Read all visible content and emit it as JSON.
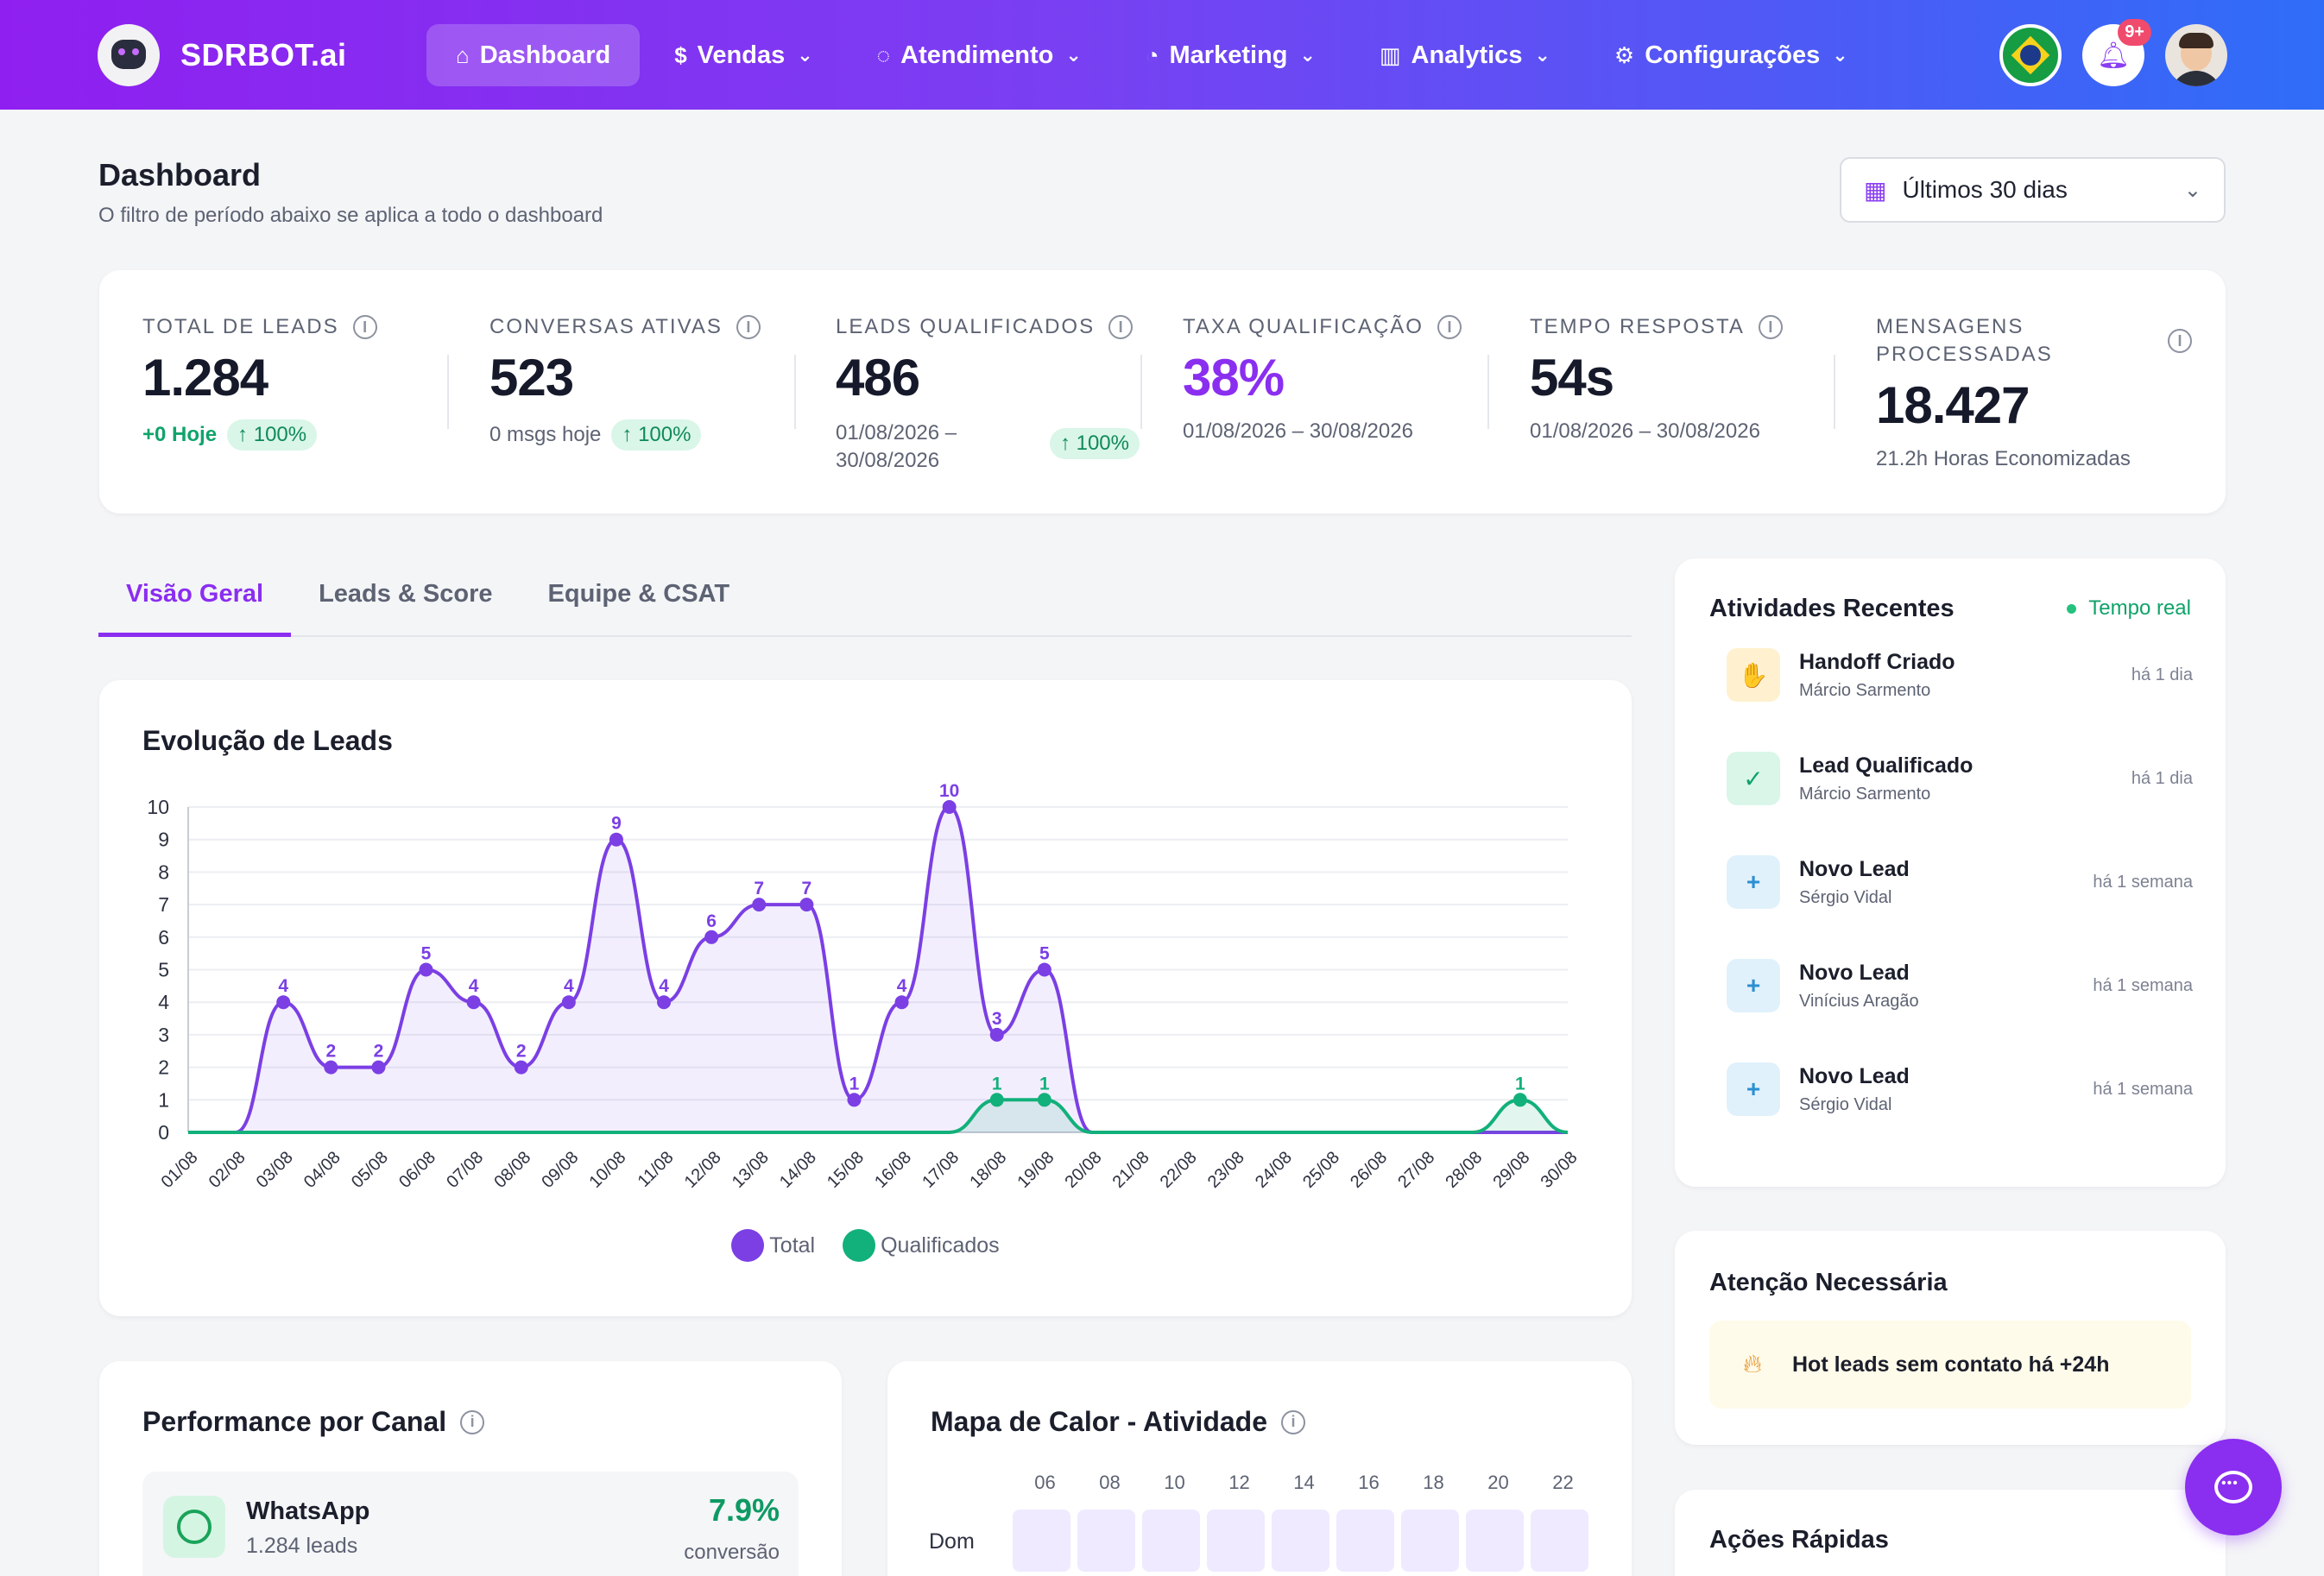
{
  "brand": {
    "name": "SDRBOT.ai"
  },
  "nav": {
    "items": [
      {
        "label": "Dashboard",
        "icon": "home-icon",
        "active": true,
        "dropdown": false
      },
      {
        "label": "Vendas",
        "icon": "dollar-icon",
        "active": false,
        "dropdown": true
      },
      {
        "label": "Atendimento",
        "icon": "chat-icon",
        "active": false,
        "dropdown": true
      },
      {
        "label": "Marketing",
        "icon": "pie-chart-icon",
        "active": false,
        "dropdown": true
      },
      {
        "label": "Analytics",
        "icon": "bar-chart-icon",
        "active": false,
        "dropdown": true
      },
      {
        "label": "Configurações",
        "icon": "gear-icon",
        "active": false,
        "dropdown": true
      }
    ],
    "notifications_badge": "9+"
  },
  "header": {
    "title": "Dashboard",
    "subtitle": "O filtro de período abaixo se aplica a todo o dashboard",
    "period": "Últimos 30 dias"
  },
  "kpis": [
    {
      "label": "TOTAL DE LEADS",
      "value": "1.284",
      "foot_primary": "+0 Hoje",
      "pill": "100%"
    },
    {
      "label": "CONVERSAS ATIVAS",
      "value": "523",
      "foot_primary": "0 msgs hoje",
      "pill": "100%"
    },
    {
      "label": "LEADS QUALIFICADOS",
      "value": "486",
      "foot_line1": "01/08/2026 –",
      "foot_line2": "30/08/2026",
      "pill": "100%"
    },
    {
      "label": "TAXA QUALIFICAÇÃO",
      "value": "38%",
      "foot_primary": "01/08/2026 – 30/08/2026"
    },
    {
      "label": "TEMPO RESPOSTA",
      "value": "54s",
      "foot_primary": "01/08/2026 – 30/08/2026"
    },
    {
      "label_line1": "MENSAGENS",
      "label_line2": "PROCESSADAS",
      "value": "18.427",
      "foot_primary": "21.2h Horas Economizadas"
    }
  ],
  "tabs": [
    {
      "label": "Visão Geral",
      "active": true
    },
    {
      "label": "Leads & Score",
      "active": false
    },
    {
      "label": "Equipe & CSAT",
      "active": false
    }
  ],
  "chart_title": "Evolução de Leads",
  "chart_data": {
    "type": "area",
    "categories": [
      "01/08",
      "02/08",
      "03/08",
      "04/08",
      "05/08",
      "06/08",
      "07/08",
      "08/08",
      "09/08",
      "10/08",
      "11/08",
      "12/08",
      "13/08",
      "14/08",
      "15/08",
      "16/08",
      "17/08",
      "18/08",
      "19/08",
      "20/08",
      "21/08",
      "22/08",
      "23/08",
      "24/08",
      "25/08",
      "26/08",
      "27/08",
      "28/08",
      "29/08",
      "30/08"
    ],
    "ylim": [
      0,
      10
    ],
    "yticks": [
      0,
      1,
      2,
      3,
      4,
      5,
      6,
      7,
      8,
      9,
      10
    ],
    "grid": true,
    "legend": "bottom",
    "series": [
      {
        "name": "Total",
        "color": "#7b3fe4",
        "values": [
          0,
          0,
          4,
          2,
          2,
          5,
          4,
          2,
          4,
          9,
          4,
          6,
          7,
          7,
          1,
          4,
          10,
          3,
          5,
          0,
          0,
          0,
          0,
          0,
          0,
          0,
          0,
          0,
          0,
          0
        ]
      },
      {
        "name": "Qualificados",
        "color": "#12b07a",
        "values": [
          0,
          0,
          0,
          0,
          0,
          0,
          0,
          0,
          0,
          0,
          0,
          0,
          0,
          0,
          0,
          0,
          0,
          1,
          1,
          0,
          0,
          0,
          0,
          0,
          0,
          0,
          0,
          0,
          1,
          0
        ]
      }
    ]
  },
  "performance": {
    "title": "Performance por Canal",
    "channel": {
      "name": "WhatsApp",
      "leads": "1.284 leads",
      "rate": "7.9%",
      "rate_label": "conversão"
    }
  },
  "heatmap": {
    "title": "Mapa de Calor - Atividade",
    "hours": [
      "06",
      "08",
      "10",
      "12",
      "14",
      "16",
      "18",
      "20",
      "22"
    ],
    "day": "Dom"
  },
  "activities": {
    "title": "Atividades Recentes",
    "live_label": "Tempo real",
    "items": [
      {
        "name": "Handoff Criado",
        "person": "Márcio Sarmento",
        "time": "há 1 dia",
        "icon": "hand-icon",
        "bg": "#fff1cf",
        "fg": "#e38a16",
        "glyph": "✋"
      },
      {
        "name": "Lead Qualificado",
        "person": "Márcio Sarmento",
        "time": "há 1 dia",
        "icon": "check-circle-icon",
        "bg": "#d9f6e8",
        "fg": "#10a36a",
        "glyph": "✓"
      },
      {
        "name": "Novo Lead",
        "person": "Sérgio Vidal",
        "time": "há 1 semana",
        "icon": "user-plus-icon",
        "bg": "#e0f1fb",
        "fg": "#2b8fd0",
        "glyph": "+"
      },
      {
        "name": "Novo Lead",
        "person": "Vinícius Aragão",
        "time": "há 1 semana",
        "icon": "user-plus-icon",
        "bg": "#e0f1fb",
        "fg": "#2b8fd0",
        "glyph": "+"
      },
      {
        "name": "Novo Lead",
        "person": "Sérgio Vidal",
        "time": "há 1 semana",
        "icon": "user-plus-icon",
        "bg": "#e0f1fb",
        "fg": "#2b8fd0",
        "glyph": "+"
      }
    ]
  },
  "attention": {
    "title": "Atenção Necessária",
    "item": "Hot leads sem contato há +24h"
  },
  "quick_actions": {
    "title": "Ações Rápidas"
  }
}
